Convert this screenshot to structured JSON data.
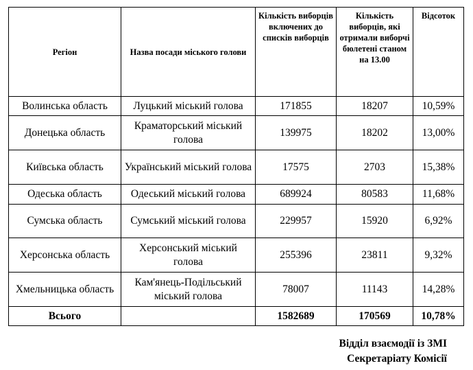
{
  "table": {
    "headers": [
      "Регіон",
      "Назва посади міського голови",
      "Кількість виборців включених до списків виборців",
      "Кількість виборців, які отримали виборчі бюлетені станом на 13.00",
      "Відсоток"
    ],
    "rows": [
      [
        "Волинська область",
        "Луцький міський голова",
        "171855",
        "18207",
        "10,59%"
      ],
      [
        "Донецька область",
        "Краматорський міський голова",
        "139975",
        "18202",
        "13,00%"
      ],
      [
        "Київська область",
        "Український міський голова",
        "17575",
        "2703",
        "15,38%"
      ],
      [
        "Одеська область",
        "Одеський міський голова",
        "689924",
        "80583",
        "11,68%"
      ],
      [
        "Сумська область",
        "Сумський міський голова",
        "229957",
        "15920",
        "6,92%"
      ],
      [
        "Херсонська область",
        "Херсонський міський голова",
        "255396",
        "23811",
        "9,32%"
      ],
      [
        "Хмельницька область",
        "Кам'янець-Подільський міський голова",
        "78007",
        "11143",
        "14,28%"
      ]
    ],
    "total": [
      "Всього",
      "1582689",
      "170569",
      "10,78%"
    ]
  },
  "footer": [
    "Відділ взаємодії із ЗМІ",
    "Секретаріату Комісії"
  ]
}
